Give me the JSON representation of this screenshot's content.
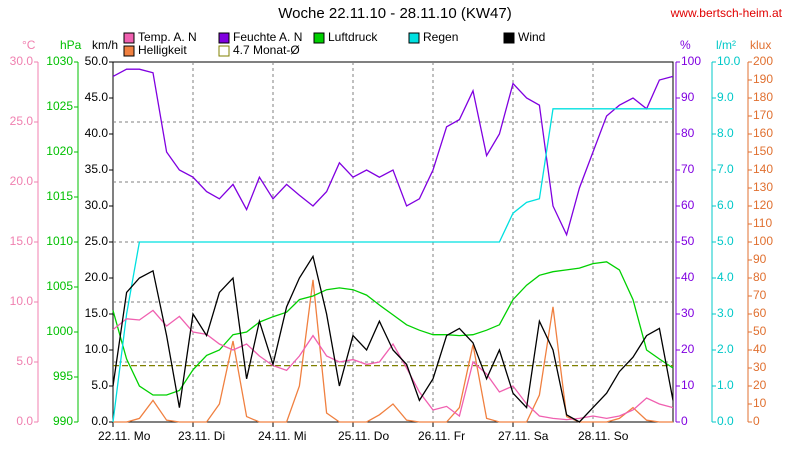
{
  "chart_data": {
    "type": "line",
    "title": "Woche 22.11.10 - 28.11.10 (KW47)",
    "source": "www.bertsch-heim.at",
    "xlim": [
      0,
      7
    ],
    "xticks": [
      {
        "value": 0,
        "label": "22.11. Mo"
      },
      {
        "value": 1,
        "label": "23.11. Di"
      },
      {
        "value": 2,
        "label": "24.11. Mi"
      },
      {
        "value": 3,
        "label": "25.11. Do"
      },
      {
        "value": 4,
        "label": "26.11. Fr"
      },
      {
        "value": 5,
        "label": "27.11. Sa"
      },
      {
        "value": 6,
        "label": "28.11. So"
      }
    ],
    "grid": true,
    "axes": [
      {
        "label": "°C",
        "color": "#f080b0",
        "lim": [
          0,
          30
        ],
        "ticks": [
          {
            "value": 0,
            "label": "0.0"
          },
          {
            "value": 5,
            "label": "5.0"
          },
          {
            "value": 10,
            "label": "10.0"
          },
          {
            "value": 15,
            "label": "15.0"
          },
          {
            "value": 20,
            "label": "20.0"
          },
          {
            "value": 25,
            "label": "25.0"
          },
          {
            "value": 30,
            "label": "30.0"
          }
        ]
      },
      {
        "label": "hPa",
        "color": "#00c000",
        "lim": [
          990,
          1030
        ],
        "ticks": [
          990,
          995,
          1000,
          1005,
          1010,
          1015,
          1020,
          1025,
          1030
        ]
      },
      {
        "label": "km/h",
        "color": "#000000",
        "lim": [
          0,
          50
        ],
        "ticks": [
          {
            "value": 0,
            "label": "0.0"
          },
          {
            "value": 5,
            "label": "5.0"
          },
          {
            "value": 10,
            "label": "10.0"
          },
          {
            "value": 15,
            "label": "15.0"
          },
          {
            "value": 20,
            "label": "20.0"
          },
          {
            "value": 25,
            "label": "25.0"
          },
          {
            "value": 30,
            "label": "30.0"
          },
          {
            "value": 35,
            "label": "35.0"
          },
          {
            "value": 40,
            "label": "40.0"
          },
          {
            "value": 45,
            "label": "45.0"
          },
          {
            "value": 50,
            "label": "50.0"
          }
        ]
      },
      {
        "label": "%",
        "color": "#8000e0",
        "lim": [
          0,
          100
        ],
        "ticks": [
          0,
          10,
          20,
          30,
          40,
          50,
          60,
          70,
          80,
          90,
          100
        ]
      },
      {
        "label": "l/m²",
        "color": "#00c8c8",
        "lim": [
          0,
          10
        ],
        "ticks": [
          {
            "value": 0,
            "label": "0.0"
          },
          {
            "value": 1,
            "label": "1.0"
          },
          {
            "value": 2,
            "label": "2.0"
          },
          {
            "value": 3,
            "label": "3.0"
          },
          {
            "value": 4,
            "label": "4.0"
          },
          {
            "value": 5,
            "label": "5.0"
          },
          {
            "value": 6,
            "label": "6.0"
          },
          {
            "value": 7,
            "label": "7.0"
          },
          {
            "value": 8,
            "label": "8.0"
          },
          {
            "value": 9,
            "label": "9.0"
          },
          {
            "value": 10,
            "label": "10.0"
          }
        ]
      },
      {
        "label": "klux",
        "color": "#e07030",
        "lim": [
          0,
          200
        ],
        "ticks": [
          0,
          10,
          20,
          30,
          40,
          50,
          60,
          70,
          80,
          90,
          100,
          110,
          120,
          130,
          140,
          150,
          160,
          170,
          180,
          190,
          200
        ]
      }
    ],
    "x": [
      0,
      0.17,
      0.33,
      0.5,
      0.67,
      0.83,
      1,
      1.17,
      1.33,
      1.5,
      1.67,
      1.83,
      2,
      2.17,
      2.33,
      2.5,
      2.67,
      2.83,
      3,
      3.17,
      3.33,
      3.5,
      3.67,
      3.83,
      4,
      4.17,
      4.33,
      4.5,
      4.67,
      4.83,
      5,
      5.17,
      5.33,
      5.5,
      5.67,
      5.83,
      6,
      6.17,
      6.33,
      6.5,
      6.67,
      6.83,
      7
    ],
    "series": [
      {
        "name": "Temp. A. N",
        "color": "#f060b0",
        "axis": 0,
        "values": [
          7.7,
          8.6,
          8.5,
          9.3,
          8.0,
          8.8,
          7.5,
          7.3,
          6.5,
          6.0,
          6.5,
          5.5,
          4.7,
          4.3,
          5.5,
          7.2,
          5.5,
          5.0,
          5.2,
          4.8,
          5.0,
          6.5,
          4.5,
          2.5,
          1.0,
          1.3,
          0.5,
          5.0,
          4.0,
          2.5,
          3.0,
          1.5,
          0.5,
          0.3,
          0.2,
          0.3,
          0.5,
          0.3,
          0.5,
          1.0,
          2.0,
          1.5,
          1.2
        ]
      },
      {
        "name": "Feuchte A. N",
        "color": "#8000e0",
        "axis": 3,
        "values": [
          96,
          98,
          98,
          97,
          75,
          70,
          68,
          64,
          62,
          66,
          59,
          68,
          62,
          66,
          63,
          60,
          64,
          72,
          68,
          70,
          68,
          70,
          60,
          62,
          70,
          82,
          84,
          92,
          74,
          80,
          94,
          90,
          88,
          60,
          52,
          65,
          75,
          85,
          88,
          90,
          87,
          95,
          96
        ]
      },
      {
        "name": "Luftdruck",
        "color": "#00d000",
        "axis": 1,
        "values": [
          1002.4,
          997,
          994,
          993,
          993,
          993.5,
          995.8,
          997.4,
          998,
          999.7,
          1000,
          1001.1,
          1001.7,
          1002.2,
          1003.6,
          1004,
          1004.7,
          1004.9,
          1004.7,
          1004.1,
          1003,
          1001.9,
          1000.8,
          1000.2,
          999.7,
          999.7,
          999.6,
          999.7,
          1000.2,
          1000.8,
          1003.6,
          1005.2,
          1006.3,
          1006.7,
          1006.9,
          1007.1,
          1007.6,
          1007.8,
          1006.9,
          1003.6,
          998,
          997,
          996
        ]
      },
      {
        "name": "Regen",
        "color": "#00e0e0",
        "axis": 4,
        "values": [
          0,
          3,
          5,
          5,
          5,
          5,
          5,
          5,
          5,
          5,
          5,
          5,
          5,
          5,
          5,
          5,
          5,
          5,
          5,
          5,
          5,
          5,
          5,
          5,
          5,
          5,
          5,
          5,
          5,
          5,
          5.8,
          6.1,
          6.2,
          8.7,
          8.7,
          8.7,
          8.7,
          8.7,
          8.7,
          8.7,
          8.7,
          8.7,
          8.7
        ]
      },
      {
        "name": "Wind",
        "color": "#000000",
        "axis": 2,
        "values": [
          5,
          18,
          20,
          21,
          12,
          2,
          15,
          12,
          18,
          20,
          6,
          14,
          8,
          16,
          20,
          23,
          15,
          5,
          12,
          10,
          14,
          10,
          8,
          3,
          6,
          12,
          13,
          11,
          6,
          10,
          4,
          2,
          14,
          10,
          1,
          0,
          2,
          4,
          7,
          9,
          12,
          13,
          3
        ]
      },
      {
        "name": "Helligkeit",
        "color": "#f08040",
        "axis": 5,
        "values": [
          0,
          0,
          2,
          12,
          1,
          0,
          0,
          0,
          10,
          45,
          3,
          0,
          0,
          0,
          20,
          79,
          5,
          0,
          0,
          0,
          4,
          10,
          1,
          0,
          0,
          0,
          8,
          43,
          2,
          0,
          0,
          0,
          15,
          64,
          3,
          0,
          0,
          0,
          2,
          8,
          1,
          0,
          0
        ]
      }
    ],
    "reference_lines": [
      {
        "name": "4.7 Monat-Ø",
        "color": "#808000",
        "axis": 0,
        "value": 4.7
      }
    ]
  }
}
